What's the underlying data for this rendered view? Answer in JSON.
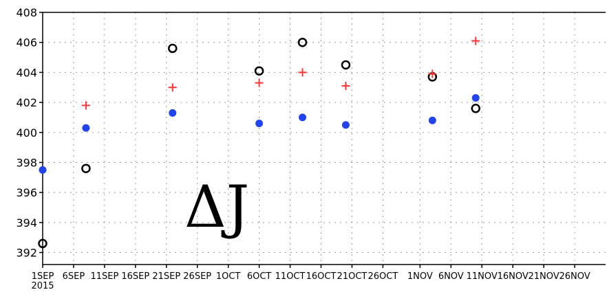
{
  "chart_data": {
    "type": "scatter",
    "title": "",
    "xlabel": "",
    "ylabel": "",
    "ylim": [
      391.2,
      408
    ],
    "xlim_days": [
      0,
      91
    ],
    "yticks": [
      392,
      394,
      396,
      398,
      400,
      402,
      404,
      406,
      408
    ],
    "xticks": [
      {
        "day": 0,
        "label": "1SEP",
        "sub": "2015"
      },
      {
        "day": 5,
        "label": "6SEP"
      },
      {
        "day": 10,
        "label": "11SEP"
      },
      {
        "day": 15,
        "label": "16SEP"
      },
      {
        "day": 20,
        "label": "21SEP"
      },
      {
        "day": 25,
        "label": "26SEP"
      },
      {
        "day": 30,
        "label": "1OCT"
      },
      {
        "day": 35,
        "label": "6OCT"
      },
      {
        "day": 40,
        "label": "11OCT"
      },
      {
        "day": 45,
        "label": "16OCT"
      },
      {
        "day": 50,
        "label": "21OCT"
      },
      {
        "day": 55,
        "label": "26OCT"
      },
      {
        "day": 61,
        "label": "1NOV"
      },
      {
        "day": 66,
        "label": "6NOV"
      },
      {
        "day": 71,
        "label": "11NOV"
      },
      {
        "day": 76,
        "label": "16NOV"
      },
      {
        "day": 81,
        "label": "21NOV"
      },
      {
        "day": 86,
        "label": "26NOV"
      }
    ],
    "grid": true,
    "annotation": "ΔJ",
    "series": [
      {
        "marker": "open-circle",
        "color": "#000000",
        "points": [
          [
            0,
            392.6
          ],
          [
            7,
            397.6
          ],
          [
            21,
            405.6
          ],
          [
            35,
            404.1
          ],
          [
            42,
            406.0
          ],
          [
            49,
            404.5
          ],
          [
            63,
            403.7
          ],
          [
            70,
            401.6
          ]
        ]
      },
      {
        "marker": "plus",
        "color": "#ff3333",
        "points": [
          [
            7,
            401.8
          ],
          [
            21,
            403.0
          ],
          [
            35,
            403.3
          ],
          [
            42,
            404.0
          ],
          [
            49,
            403.1
          ],
          [
            63,
            403.9
          ],
          [
            70,
            406.1
          ]
        ]
      },
      {
        "marker": "filled-circle",
        "color": "#2244ee",
        "points": [
          [
            0,
            397.5
          ],
          [
            7,
            400.3
          ],
          [
            21,
            401.3
          ],
          [
            35,
            400.6
          ],
          [
            42,
            401.0
          ],
          [
            49,
            400.5
          ],
          [
            63,
            400.8
          ],
          [
            70,
            402.3
          ]
        ]
      }
    ]
  }
}
